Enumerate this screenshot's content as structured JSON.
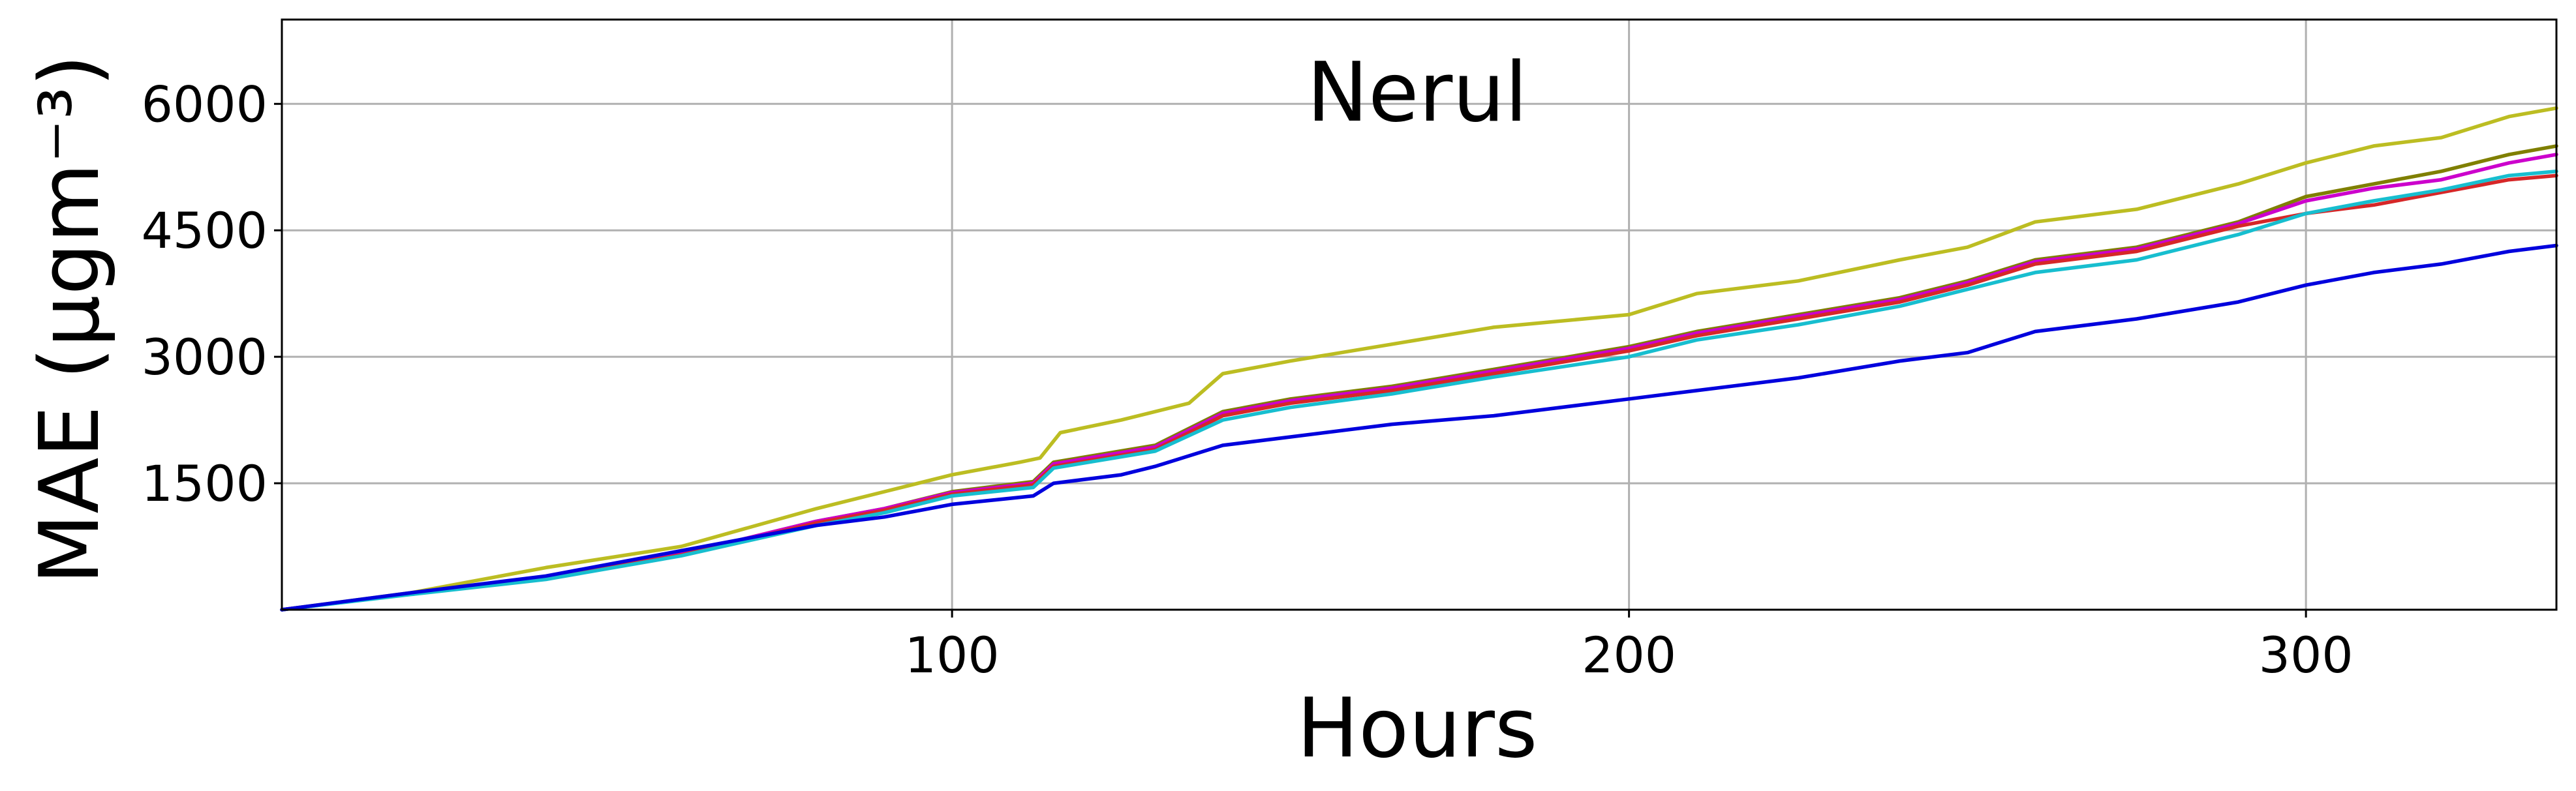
{
  "chart_data": {
    "type": "line",
    "title": "Nerul",
    "xlabel": "Hours",
    "ylabel": "MAE (μgm⁻³)",
    "xlim": [
      1,
      337
    ],
    "ylim": [
      0,
      7000
    ],
    "xticks": [
      100,
      200,
      300
    ],
    "yticks": [
      1500,
      3000,
      4500,
      6000
    ],
    "xtick_labels": [
      "100",
      "200",
      "300"
    ],
    "ytick_labels": [
      "1500",
      "3000",
      "4500",
      "6000"
    ],
    "grid": true,
    "legend": "none",
    "series": [
      {
        "color": "#bcbd22",
        "points": [
          [
            1,
            0
          ],
          [
            20,
            200
          ],
          [
            40,
            500
          ],
          [
            60,
            750
          ],
          [
            80,
            1200
          ],
          [
            90,
            1400
          ],
          [
            100,
            1600
          ],
          [
            110,
            1750
          ],
          [
            113,
            1800
          ],
          [
            116,
            2100
          ],
          [
            125,
            2250
          ],
          [
            135,
            2450
          ],
          [
            140,
            2800
          ],
          [
            150,
            2950
          ],
          [
            165,
            3150
          ],
          [
            180,
            3350
          ],
          [
            200,
            3500
          ],
          [
            210,
            3750
          ],
          [
            225,
            3900
          ],
          [
            240,
            4150
          ],
          [
            250,
            4300
          ],
          [
            260,
            4600
          ],
          [
            275,
            4750
          ],
          [
            290,
            5050
          ],
          [
            300,
            5300
          ],
          [
            310,
            5500
          ],
          [
            320,
            5600
          ],
          [
            330,
            5850
          ],
          [
            337,
            5950
          ]
        ]
      },
      {
        "color": "#7f7f00",
        "points": [
          [
            1,
            0
          ],
          [
            20,
            190
          ],
          [
            40,
            380
          ],
          [
            60,
            660
          ],
          [
            80,
            1050
          ],
          [
            90,
            1200
          ],
          [
            100,
            1400
          ],
          [
            112,
            1520
          ],
          [
            115,
            1750
          ],
          [
            130,
            1950
          ],
          [
            140,
            2350
          ],
          [
            150,
            2500
          ],
          [
            165,
            2650
          ],
          [
            180,
            2850
          ],
          [
            200,
            3120
          ],
          [
            210,
            3300
          ],
          [
            225,
            3500
          ],
          [
            240,
            3700
          ],
          [
            250,
            3900
          ],
          [
            260,
            4150
          ],
          [
            275,
            4300
          ],
          [
            290,
            4600
          ],
          [
            300,
            4900
          ],
          [
            310,
            5050
          ],
          [
            320,
            5200
          ],
          [
            330,
            5400
          ],
          [
            337,
            5500
          ]
        ]
      },
      {
        "color": "#cc00cc",
        "points": [
          [
            1,
            0
          ],
          [
            20,
            190
          ],
          [
            40,
            380
          ],
          [
            60,
            660
          ],
          [
            80,
            1050
          ],
          [
            90,
            1200
          ],
          [
            100,
            1390
          ],
          [
            112,
            1500
          ],
          [
            115,
            1730
          ],
          [
            130,
            1930
          ],
          [
            140,
            2330
          ],
          [
            150,
            2480
          ],
          [
            165,
            2630
          ],
          [
            180,
            2830
          ],
          [
            200,
            3100
          ],
          [
            210,
            3280
          ],
          [
            225,
            3480
          ],
          [
            240,
            3680
          ],
          [
            250,
            3880
          ],
          [
            260,
            4130
          ],
          [
            275,
            4280
          ],
          [
            290,
            4580
          ],
          [
            300,
            4850
          ],
          [
            310,
            5000
          ],
          [
            320,
            5100
          ],
          [
            330,
            5300
          ],
          [
            337,
            5400
          ]
        ]
      },
      {
        "color": "#d62728",
        "points": [
          [
            1,
            0
          ],
          [
            20,
            185
          ],
          [
            40,
            370
          ],
          [
            60,
            650
          ],
          [
            80,
            1030
          ],
          [
            90,
            1180
          ],
          [
            100,
            1370
          ],
          [
            112,
            1480
          ],
          [
            115,
            1700
          ],
          [
            130,
            1900
          ],
          [
            140,
            2300
          ],
          [
            150,
            2450
          ],
          [
            165,
            2600
          ],
          [
            180,
            2800
          ],
          [
            200,
            3070
          ],
          [
            210,
            3250
          ],
          [
            225,
            3450
          ],
          [
            240,
            3650
          ],
          [
            250,
            3850
          ],
          [
            260,
            4100
          ],
          [
            275,
            4250
          ],
          [
            290,
            4550
          ],
          [
            300,
            4700
          ],
          [
            310,
            4800
          ],
          [
            320,
            4950
          ],
          [
            330,
            5100
          ],
          [
            337,
            5150
          ]
        ]
      },
      {
        "color": "#17becf",
        "points": [
          [
            1,
            0
          ],
          [
            20,
            180
          ],
          [
            40,
            360
          ],
          [
            60,
            640
          ],
          [
            80,
            1000
          ],
          [
            90,
            1150
          ],
          [
            100,
            1350
          ],
          [
            112,
            1450
          ],
          [
            115,
            1680
          ],
          [
            130,
            1880
          ],
          [
            140,
            2250
          ],
          [
            150,
            2400
          ],
          [
            165,
            2560
          ],
          [
            180,
            2760
          ],
          [
            200,
            3000
          ],
          [
            210,
            3200
          ],
          [
            225,
            3380
          ],
          [
            240,
            3600
          ],
          [
            250,
            3800
          ],
          [
            260,
            4000
          ],
          [
            275,
            4150
          ],
          [
            290,
            4450
          ],
          [
            300,
            4700
          ],
          [
            310,
            4850
          ],
          [
            320,
            4980
          ],
          [
            330,
            5150
          ],
          [
            337,
            5200
          ]
        ]
      },
      {
        "color": "#0000dd",
        "points": [
          [
            1,
            0
          ],
          [
            20,
            200
          ],
          [
            40,
            400
          ],
          [
            60,
            700
          ],
          [
            80,
            1000
          ],
          [
            90,
            1100
          ],
          [
            100,
            1250
          ],
          [
            112,
            1350
          ],
          [
            115,
            1500
          ],
          [
            125,
            1600
          ],
          [
            130,
            1700
          ],
          [
            140,
            1950
          ],
          [
            150,
            2050
          ],
          [
            165,
            2200
          ],
          [
            180,
            2300
          ],
          [
            200,
            2500
          ],
          [
            210,
            2600
          ],
          [
            225,
            2750
          ],
          [
            240,
            2950
          ],
          [
            250,
            3050
          ],
          [
            260,
            3300
          ],
          [
            275,
            3450
          ],
          [
            290,
            3650
          ],
          [
            300,
            3850
          ],
          [
            310,
            4000
          ],
          [
            320,
            4100
          ],
          [
            330,
            4250
          ],
          [
            337,
            4320
          ]
        ]
      }
    ]
  }
}
